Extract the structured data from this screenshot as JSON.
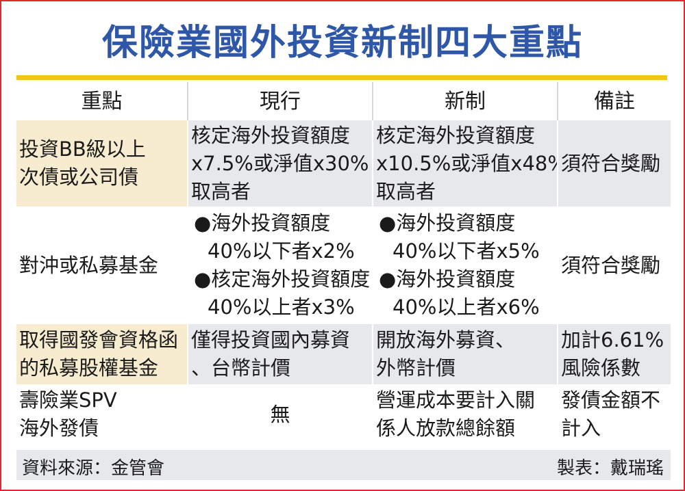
{
  "title": "保險業國外投資新制四大重點",
  "columns": [
    "重點",
    "現行",
    "新制",
    "備註"
  ],
  "rows": [
    {
      "key": [
        "投資BB級以上",
        "次債或公司債"
      ],
      "current": [
        "核定海外投資額度",
        "x7.5%或淨值x30%",
        "取高者"
      ],
      "new": [
        "核定海外投資額度",
        "x10.5%或淨值x48%",
        "取高者"
      ],
      "note": [
        "須符合獎勵"
      ]
    },
    {
      "key": [
        "對沖或私募基金"
      ],
      "current": [
        {
          "bullet": "●海外投資額度",
          "detail": "40%以下者x2%"
        },
        {
          "bullet": "●核定海外投資額度",
          "detail": "40%以上者x3%"
        }
      ],
      "new": [
        {
          "bullet": "●海外投資額度",
          "detail": "40%以下者x5%"
        },
        {
          "bullet": "●海外投資額度",
          "detail": "40%以上者x6%"
        }
      ],
      "note": [
        "須符合獎勵"
      ]
    },
    {
      "key": [
        "取得國發會資格函",
        "的私募股權基金"
      ],
      "current": [
        "僅得投資國內募資",
        "、台幣計價"
      ],
      "new": [
        "開放海外募資、",
        "外幣計價"
      ],
      "note": [
        "加計6.61%",
        "風險係數"
      ]
    },
    {
      "key": [
        "壽險業SPV",
        "海外發債"
      ],
      "current": [
        "無"
      ],
      "new": [
        "營運成本要計入關",
        "係人放款總餘額"
      ],
      "note": [
        "發債金額不",
        "計入"
      ]
    }
  ],
  "footer": {
    "source": "資料來源：金管會",
    "maker": "製表：戴瑞瑤"
  },
  "colors": {
    "title": "#2f57a8",
    "border": "#e0282e",
    "rule": "#f4c516",
    "row_shade": "#e6e8ec",
    "key_shade": "#f7ecd0"
  }
}
